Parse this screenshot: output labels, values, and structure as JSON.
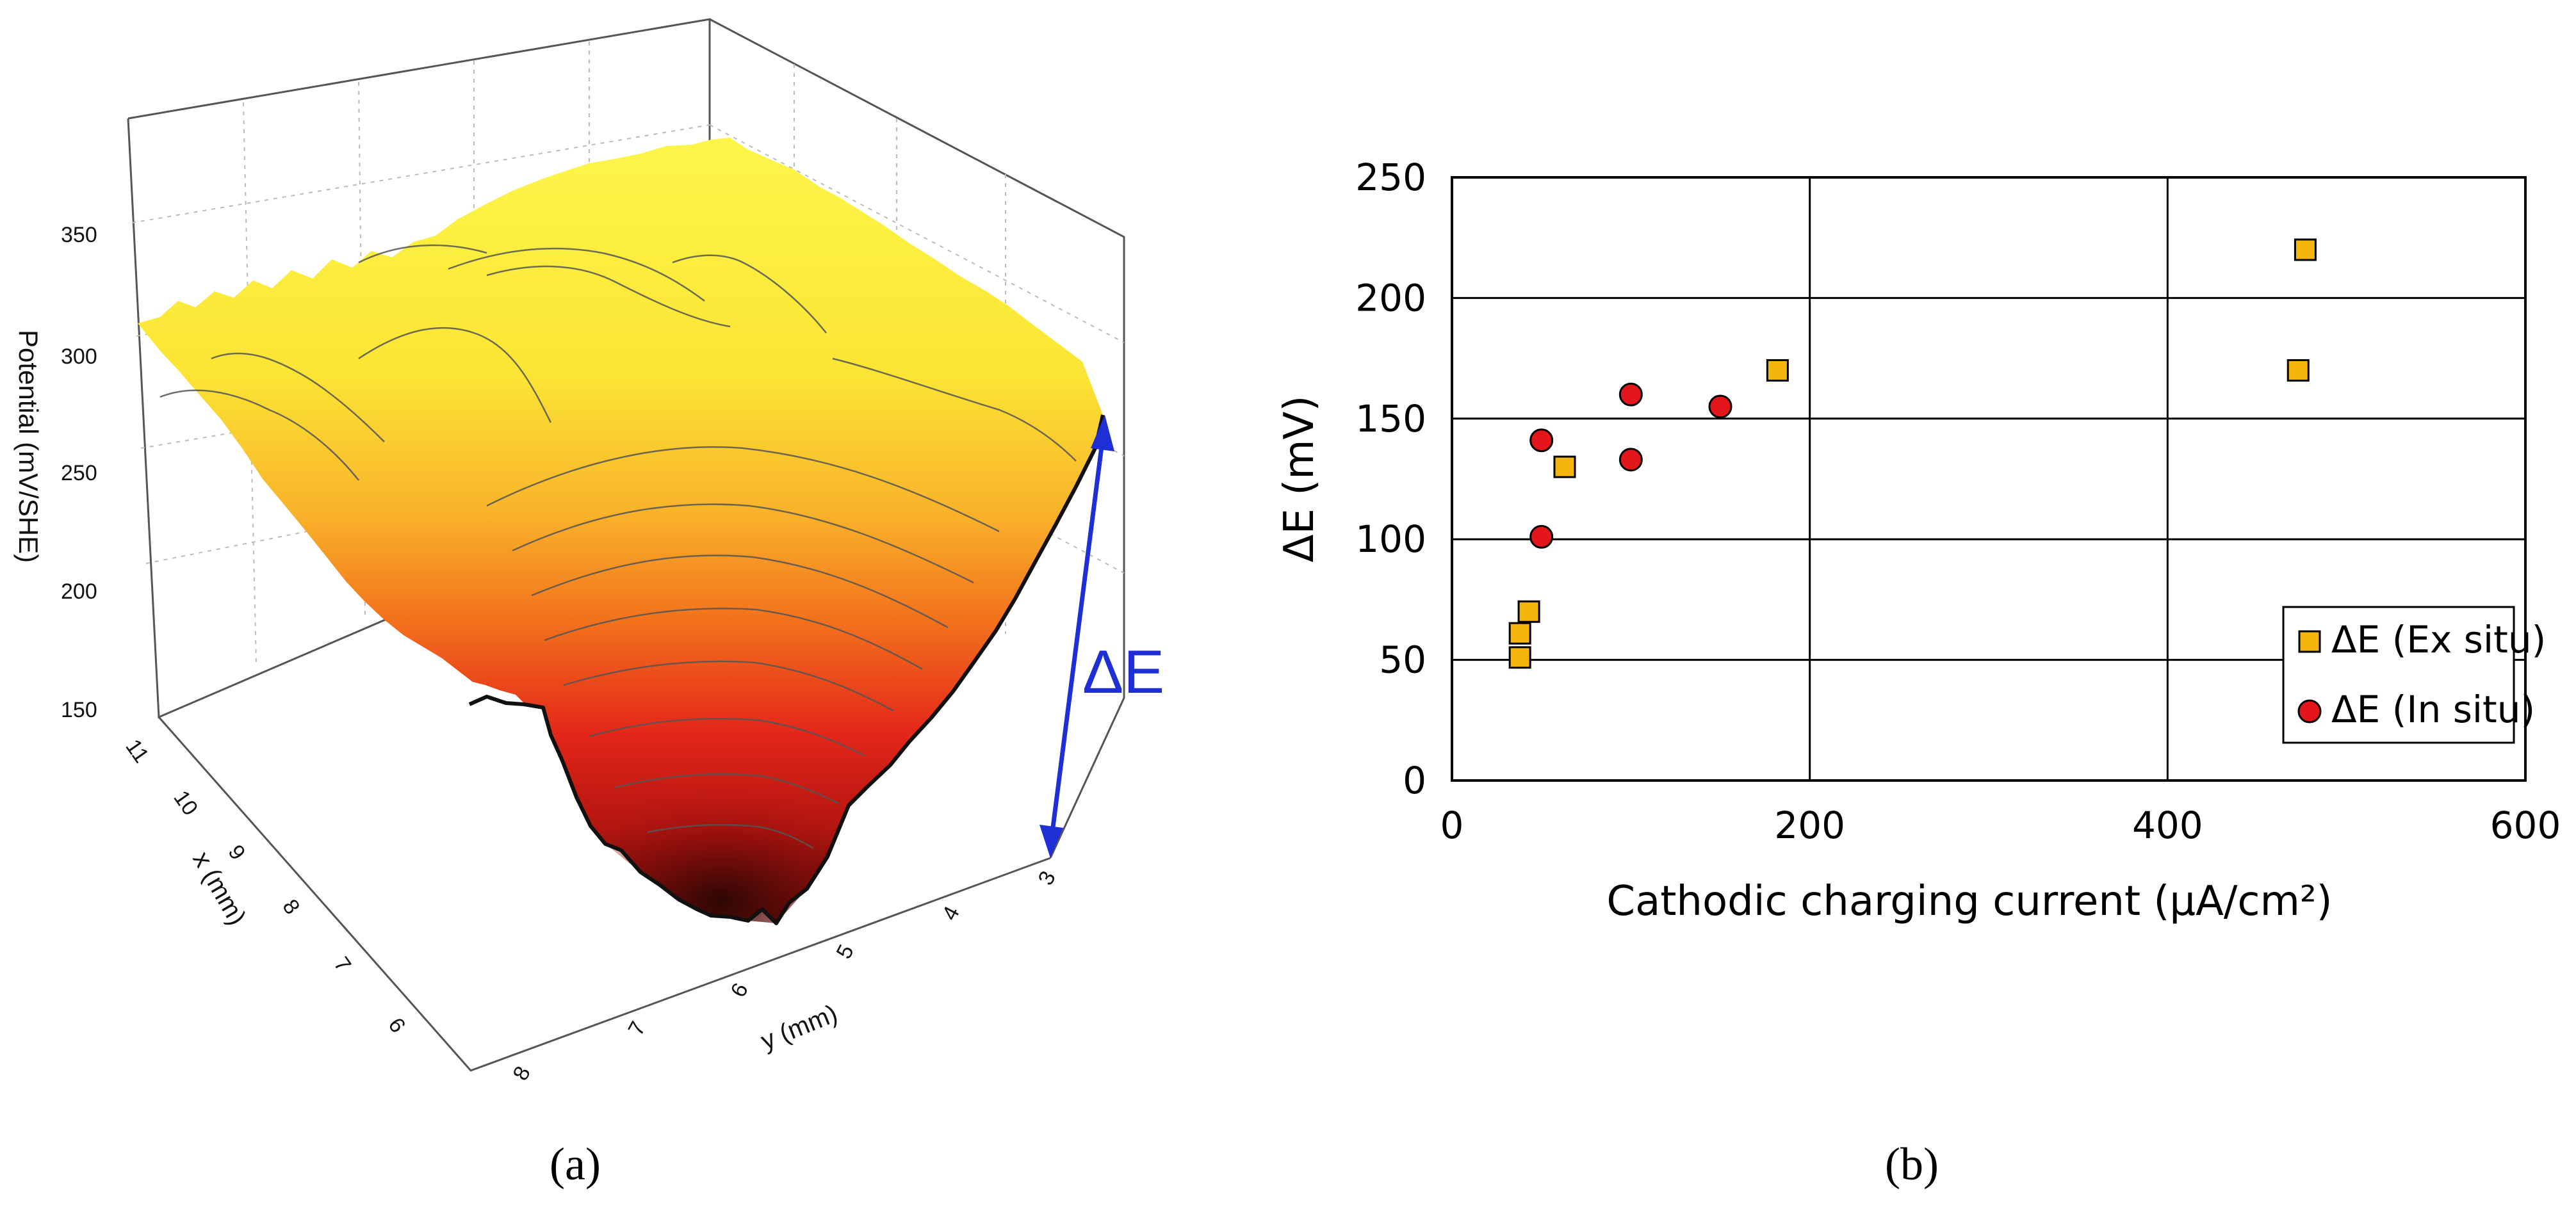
{
  "panel_a": {
    "caption": "(a)",
    "delta_label": "ΔE",
    "z_axis_title": "Potential (mV/SHE)",
    "x_axis_title": "x (mm)",
    "y_axis_title": "y (mm)",
    "z_ticks": [
      "150",
      "200",
      "250",
      "300",
      "350"
    ],
    "x_ticks": [
      "11",
      "10",
      "9",
      "8",
      "7",
      "6"
    ],
    "y_ticks": [
      "8",
      "7",
      "6",
      "5",
      "4",
      "3"
    ],
    "colors": {
      "delta_arrow": "#1f2fd6",
      "surface_top": "#fbf43a",
      "surface_bottom": "#2a0704"
    }
  },
  "panel_b": {
    "caption": "(b)",
    "legend": [
      "ΔE (Ex situ)",
      "ΔE (In situ)"
    ],
    "colors": {
      "ex_situ": "#f5b50c",
      "in_situ": "#e3161b"
    }
  },
  "chart_data": [
    {
      "type": "surface",
      "title": "",
      "xlabel": "x (mm)",
      "ylabel": "y (mm)",
      "zlabel": "Potential (mV/SHE)",
      "x_ticks": [
        11,
        10,
        9,
        8,
        7,
        6
      ],
      "y_ticks": [
        8,
        7,
        6,
        5,
        4,
        3
      ],
      "z_ticks": [
        150,
        200,
        250,
        300,
        350
      ],
      "annotation": "ΔE"
    },
    {
      "type": "scatter",
      "title": "",
      "xlabel": "Cathodic charging current (µA/cm²)",
      "ylabel": "ΔE (mV)",
      "xlim": [
        0,
        600
      ],
      "ylim": [
        0,
        250
      ],
      "xticks": [
        0,
        200,
        400,
        600
      ],
      "yticks": [
        0,
        50,
        100,
        150,
        200,
        250
      ],
      "grid": true,
      "legend_position": "bottom-right",
      "series": [
        {
          "name": "ΔE (Ex situ)",
          "marker": "square",
          "x": [
            38,
            38,
            43,
            63,
            182,
            473,
            477
          ],
          "y": [
            51,
            61,
            70,
            130,
            170,
            170,
            220
          ]
        },
        {
          "name": "ΔE (In situ)",
          "marker": "circle",
          "x": [
            50,
            50,
            100,
            100,
            150
          ],
          "y": [
            101,
            141,
            133,
            160,
            155
          ]
        }
      ]
    }
  ]
}
